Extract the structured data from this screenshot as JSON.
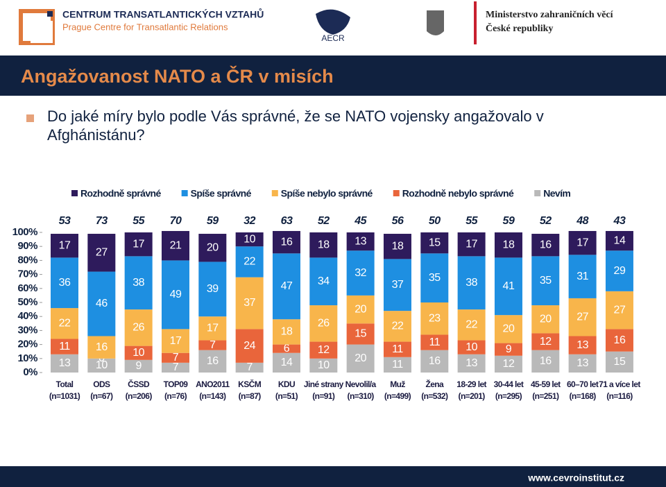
{
  "header": {
    "org_name": "CENTRUM TRANSATLANTICKÝCH VZTAHŮ",
    "org_subtitle": "Prague Centre for Transatlantic Relations",
    "aecr": "AECR",
    "ministry_line1": "Ministerstvo zahraničních věcí",
    "ministry_line2": "České republiky"
  },
  "title": "Angažovanost NATO a ČR v misích",
  "question": "Do jaké míry bylo podle Vás správné, že se NATO vojensky angažovalo v Afghánistánu?",
  "chart_data": {
    "type": "bar",
    "stacked": true,
    "legend": "top",
    "categories": [
      "Total",
      "ODS",
      "ČSSD",
      "TOP09",
      "ANO2011",
      "KSČM",
      "KDU",
      "Jiné strany",
      "Nevolil/a",
      "Muž",
      "Žena",
      "18-29 let",
      "30-44 let",
      "45-59 let",
      "60–70 let",
      "71 a více let"
    ],
    "sample_sizes": [
      "(n=1031)",
      "(n=67)",
      "(n=206)",
      "(n=76)",
      "(n=143)",
      "(n=87)",
      "(n=51)",
      "(n=91)",
      "(n=310)",
      "(n=499)",
      "(n=532)",
      "(n=201)",
      "(n=295)",
      "(n=251)",
      "(n=168)",
      "(n=116)"
    ],
    "series": [
      {
        "name": "Rozhodně správné",
        "color": "#2e1b5c",
        "values": [
          17,
          27,
          17,
          21,
          20,
          10,
          16,
          18,
          13,
          18,
          15,
          17,
          18,
          16,
          17,
          14
        ]
      },
      {
        "name": "Spíše správné",
        "color": "#1e8fe1",
        "values": [
          36,
          46,
          38,
          49,
          39,
          22,
          47,
          34,
          32,
          37,
          35,
          38,
          41,
          35,
          31,
          29
        ]
      },
      {
        "name": "Spíše nebylo správné",
        "color": "#f8b54b",
        "values": [
          22,
          16,
          26,
          17,
          17,
          37,
          18,
          26,
          20,
          22,
          23,
          22,
          20,
          20,
          27,
          27
        ]
      },
      {
        "name": "Rozhodně nebylo správné",
        "color": "#e9653b",
        "values": [
          11,
          0,
          10,
          7,
          7,
          24,
          6,
          12,
          15,
          11,
          11,
          10,
          9,
          12,
          13,
          16
        ]
      },
      {
        "name": "Nevím",
        "color": "#b9b9b9",
        "values": [
          13,
          10,
          9,
          7,
          16,
          7,
          14,
          10,
          20,
          11,
          16,
          13,
          12,
          16,
          13,
          15
        ]
      }
    ],
    "top_labels": [
      53,
      73,
      55,
      70,
      59,
      32,
      63,
      52,
      45,
      56,
      50,
      55,
      59,
      52,
      48,
      43
    ],
    "ylim": [
      0,
      100
    ],
    "yticks": [
      {
        "value": 0,
        "label": "0%"
      },
      {
        "value": 10,
        "label": "10%"
      },
      {
        "value": 20,
        "label": "20%"
      },
      {
        "value": 30,
        "label": "30%"
      },
      {
        "value": 40,
        "label": "40%"
      },
      {
        "value": 50,
        "label": "50%"
      },
      {
        "value": 60,
        "label": "60%"
      },
      {
        "value": 70,
        "label": "70%"
      },
      {
        "value": 80,
        "label": "80%"
      },
      {
        "value": 90,
        "label": "90%"
      },
      {
        "value": 100,
        "label": "100%"
      }
    ]
  },
  "footer": {
    "url": "www.cevroinstitut.cz"
  }
}
